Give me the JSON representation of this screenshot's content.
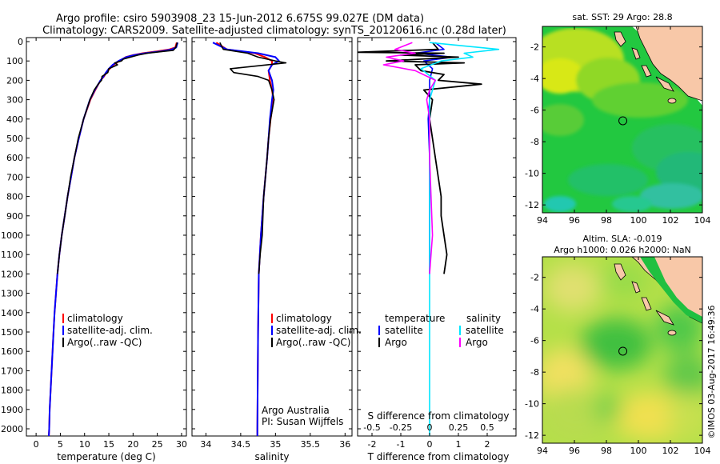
{
  "header": {
    "line1": "Argo profile: csiro 5903908_23 15-Jun-2012 6.675S 99.027E (DM data)",
    "line2": "Climatology: CARS2009. Satellite-adjusted climatology: synTS_20120616.nc (0.28d later)"
  },
  "colors": {
    "climatology": "#ff0000",
    "satellite": "#0000ff",
    "argo": "#000000",
    "sal_satellite": "#00e6ff",
    "sal_argo": "#ff00ff",
    "land": "#f8c8a8"
  },
  "depth_ticks": [
    0,
    100,
    200,
    300,
    400,
    500,
    600,
    700,
    800,
    900,
    1000,
    1100,
    1200,
    1300,
    1400,
    1500,
    1600,
    1700,
    1800,
    1900,
    2000
  ],
  "chart_data": [
    {
      "type": "line",
      "name": "temperature",
      "xlabel": "temperature (deg C)",
      "xlim": [
        -2,
        31
      ],
      "ylim": [
        2060,
        0
      ],
      "xticks": [
        0,
        5,
        10,
        15,
        20,
        25,
        30
      ],
      "legend": [
        "climatology",
        "satellite-adj. clim.",
        "Argo(..raw -QC)"
      ],
      "series": [
        {
          "name": "climatology",
          "depth": [
            5,
            30,
            40,
            50,
            60,
            70,
            80,
            100,
            120,
            140,
            160,
            180,
            200,
            250,
            300,
            400,
            500,
            600,
            700,
            800,
            900,
            1000,
            1100,
            1200,
            1300,
            1400,
            1500,
            1600,
            1700,
            1800,
            1900,
            2000,
            2050
          ],
          "values": [
            29.0,
            28.7,
            27.5,
            25.0,
            22.0,
            20.0,
            18.5,
            17.2,
            16.0,
            15.2,
            14.5,
            14.0,
            13.3,
            12.2,
            11.2,
            9.8,
            8.8,
            7.9,
            7.2,
            6.5,
            5.9,
            5.3,
            4.8,
            4.4,
            4.1,
            3.8,
            3.6,
            3.4,
            3.2,
            3.0,
            2.8,
            2.7,
            2.6
          ]
        },
        {
          "name": "satellite-adj. clim.",
          "depth": [
            5,
            30,
            40,
            50,
            60,
            70,
            80,
            100,
            120,
            140,
            160,
            180,
            200,
            250,
            300,
            400,
            500,
            600,
            700,
            800,
            900,
            1000,
            1100,
            1200,
            1300,
            1400,
            1500,
            1600,
            1700,
            1800,
            1900,
            2000,
            2050
          ],
          "values": [
            29.2,
            28.9,
            28.0,
            25.8,
            22.5,
            20.2,
            18.6,
            17.0,
            15.8,
            15.0,
            14.4,
            13.9,
            13.3,
            12.1,
            11.1,
            9.8,
            8.8,
            7.9,
            7.2,
            6.5,
            5.9,
            5.3,
            4.8,
            4.4,
            4.1,
            3.8,
            3.6,
            3.4,
            3.2,
            3.0,
            2.8,
            2.7,
            2.6
          ]
        },
        {
          "name": "Argo(..raw -QC)",
          "depth": [
            5,
            30,
            45,
            50,
            60,
            70,
            80,
            90,
            100,
            110,
            120,
            140,
            160,
            180,
            200,
            220,
            250,
            300,
            400,
            500,
            600,
            700,
            800,
            900,
            1000,
            1100,
            1200
          ],
          "values": [
            29.1,
            28.8,
            28.3,
            26.5,
            23.0,
            21.0,
            19.5,
            18.0,
            17.6,
            16.2,
            16.8,
            15.0,
            14.8,
            13.6,
            13.5,
            12.8,
            12.0,
            11.1,
            9.8,
            8.7,
            7.9,
            7.1,
            6.5,
            5.9,
            5.3,
            4.8,
            4.4
          ]
        }
      ]
    },
    {
      "type": "line",
      "name": "salinity",
      "xlabel": "salinity",
      "xlim": [
        33.8,
        36.1
      ],
      "ylim": [
        2060,
        0
      ],
      "xticks": [
        34,
        34.5,
        35,
        35.5,
        36
      ],
      "legend": [
        "climatology",
        "satellite-adj. clim.",
        "Argo(..raw -QC)"
      ],
      "annotation": [
        "Argo Australia",
        "PI: Susan Wijffels"
      ],
      "series": [
        {
          "name": "climatology",
          "depth": [
            5,
            40,
            60,
            80,
            100,
            120,
            150,
            200,
            250,
            300,
            400,
            500,
            600,
            800,
            1000,
            1200,
            1500,
            2000,
            2050
          ],
          "values": [
            34.15,
            34.3,
            34.7,
            34.85,
            34.95,
            34.95,
            34.9,
            34.92,
            34.95,
            34.97,
            34.93,
            34.9,
            34.88,
            34.83,
            34.79,
            34.76,
            34.75,
            34.74,
            34.74
          ]
        },
        {
          "name": "satellite-adj. clim.",
          "depth": [
            5,
            40,
            60,
            80,
            100,
            120,
            150,
            200,
            250,
            300,
            400,
            500,
            600,
            800,
            1000,
            1200,
            1500,
            2000,
            2050
          ],
          "values": [
            34.1,
            34.3,
            34.75,
            35.0,
            35.05,
            34.95,
            34.9,
            34.95,
            34.97,
            34.95,
            34.92,
            34.9,
            34.88,
            34.83,
            34.79,
            34.76,
            34.75,
            34.74,
            34.74
          ]
        },
        {
          "name": "Argo(..raw -QC)",
          "depth": [
            5,
            40,
            60,
            80,
            100,
            110,
            140,
            160,
            180,
            200,
            250,
            300,
            400,
            500,
            600,
            800,
            1000,
            1100,
            1200
          ],
          "values": [
            34.2,
            34.25,
            34.6,
            34.75,
            35.0,
            35.15,
            34.35,
            34.4,
            34.75,
            34.9,
            34.95,
            34.98,
            34.93,
            34.9,
            34.88,
            34.83,
            34.81,
            34.78,
            34.76
          ]
        }
      ]
    },
    {
      "type": "line",
      "name": "difference",
      "xlabel": "T difference from climatology",
      "xlabel_top": "S difference from climatology",
      "xlim": [
        -2.5,
        3
      ],
      "ylim": [
        2060,
        0
      ],
      "xticks": [
        -2,
        -1,
        0,
        1,
        2
      ],
      "xticks_top": [
        "-0.5",
        "-0.25",
        "0",
        "0.25",
        "0.5"
      ],
      "xticks_top_pos": [
        -2,
        -1,
        0,
        1,
        2
      ],
      "legend_temperature_title": "temperature",
      "legend_salinity_title": "salinity",
      "legend": [
        "satellite",
        "Argo",
        "satellite",
        "Argo"
      ],
      "series": [
        {
          "name": "T satellite",
          "depth": [
            5,
            40,
            60,
            80,
            100,
            140,
            200,
            300,
            400,
            600,
            800,
            1000,
            1200
          ],
          "values": [
            0.2,
            0.5,
            -0.5,
            0.8,
            -0.2,
            0.1,
            0.0,
            0.0,
            -0.05,
            0.0,
            0.0,
            0.0,
            0.0
          ]
        },
        {
          "name": "T Argo",
          "depth": [
            5,
            40,
            55,
            60,
            70,
            80,
            100,
            110,
            120,
            150,
            170,
            200,
            220,
            250,
            300,
            400,
            500,
            600,
            700,
            800,
            900,
            1000,
            1100,
            1200
          ],
          "values": [
            0.1,
            0.3,
            -2.5,
            0.5,
            -1.0,
            1.0,
            -1.5,
            1.2,
            -0.5,
            -0.3,
            0.5,
            0.3,
            1.8,
            -0.2,
            0.1,
            0.0,
            0.1,
            0.2,
            0.3,
            0.4,
            0.4,
            0.5,
            0.6,
            0.5
          ]
        },
        {
          "name": "S satellite",
          "depth": [
            5,
            40,
            60,
            80,
            100,
            140,
            200,
            300,
            400,
            600,
            800,
            1000,
            1200,
            1500,
            2000,
            2050
          ],
          "values": [
            0.0,
            2.4,
            1.2,
            1.5,
            0.4,
            -0.3,
            0.2,
            0.0,
            0.0,
            0.0,
            0.0,
            0.0,
            0.0,
            0.0,
            0.0,
            0.0
          ]
        },
        {
          "name": "S Argo",
          "depth": [
            5,
            40,
            60,
            80,
            100,
            120,
            150,
            200,
            250,
            300,
            400,
            600,
            800,
            1000,
            1200
          ],
          "values": [
            -0.6,
            -1.2,
            -0.5,
            -1.5,
            -0.9,
            -1.6,
            -0.5,
            0.2,
            0.0,
            -0.1,
            0.0,
            0.0,
            0.05,
            0.1,
            0.0
          ]
        }
      ]
    },
    {
      "type": "heatmap",
      "name": "sst_map",
      "title": "sat. SST: 29 Argo: 28.8",
      "xlim": [
        94,
        104
      ],
      "ylim": [
        -12.5,
        -0.7
      ],
      "xticks": [
        94,
        96,
        98,
        100,
        102,
        104
      ],
      "yticks": [
        -2,
        -4,
        -6,
        -8,
        -10,
        -12
      ],
      "argo_position": {
        "lon": 99.027,
        "lat": -6.675
      }
    },
    {
      "type": "heatmap",
      "name": "sla_map",
      "title_line1": "Altim. SLA: -0.019",
      "title_line2": "Argo h1000: 0.026 h2000: NaN",
      "xlim": [
        94,
        104
      ],
      "ylim": [
        -12.5,
        -0.7
      ],
      "xticks": [
        94,
        96,
        98,
        100,
        102,
        104
      ],
      "yticks": [
        -2,
        -4,
        -6,
        -8,
        -10,
        -12
      ],
      "argo_position": {
        "lon": 99.027,
        "lat": -6.675
      },
      "credit": "©IMOS 03-Aug-2017 16:49:36"
    }
  ]
}
